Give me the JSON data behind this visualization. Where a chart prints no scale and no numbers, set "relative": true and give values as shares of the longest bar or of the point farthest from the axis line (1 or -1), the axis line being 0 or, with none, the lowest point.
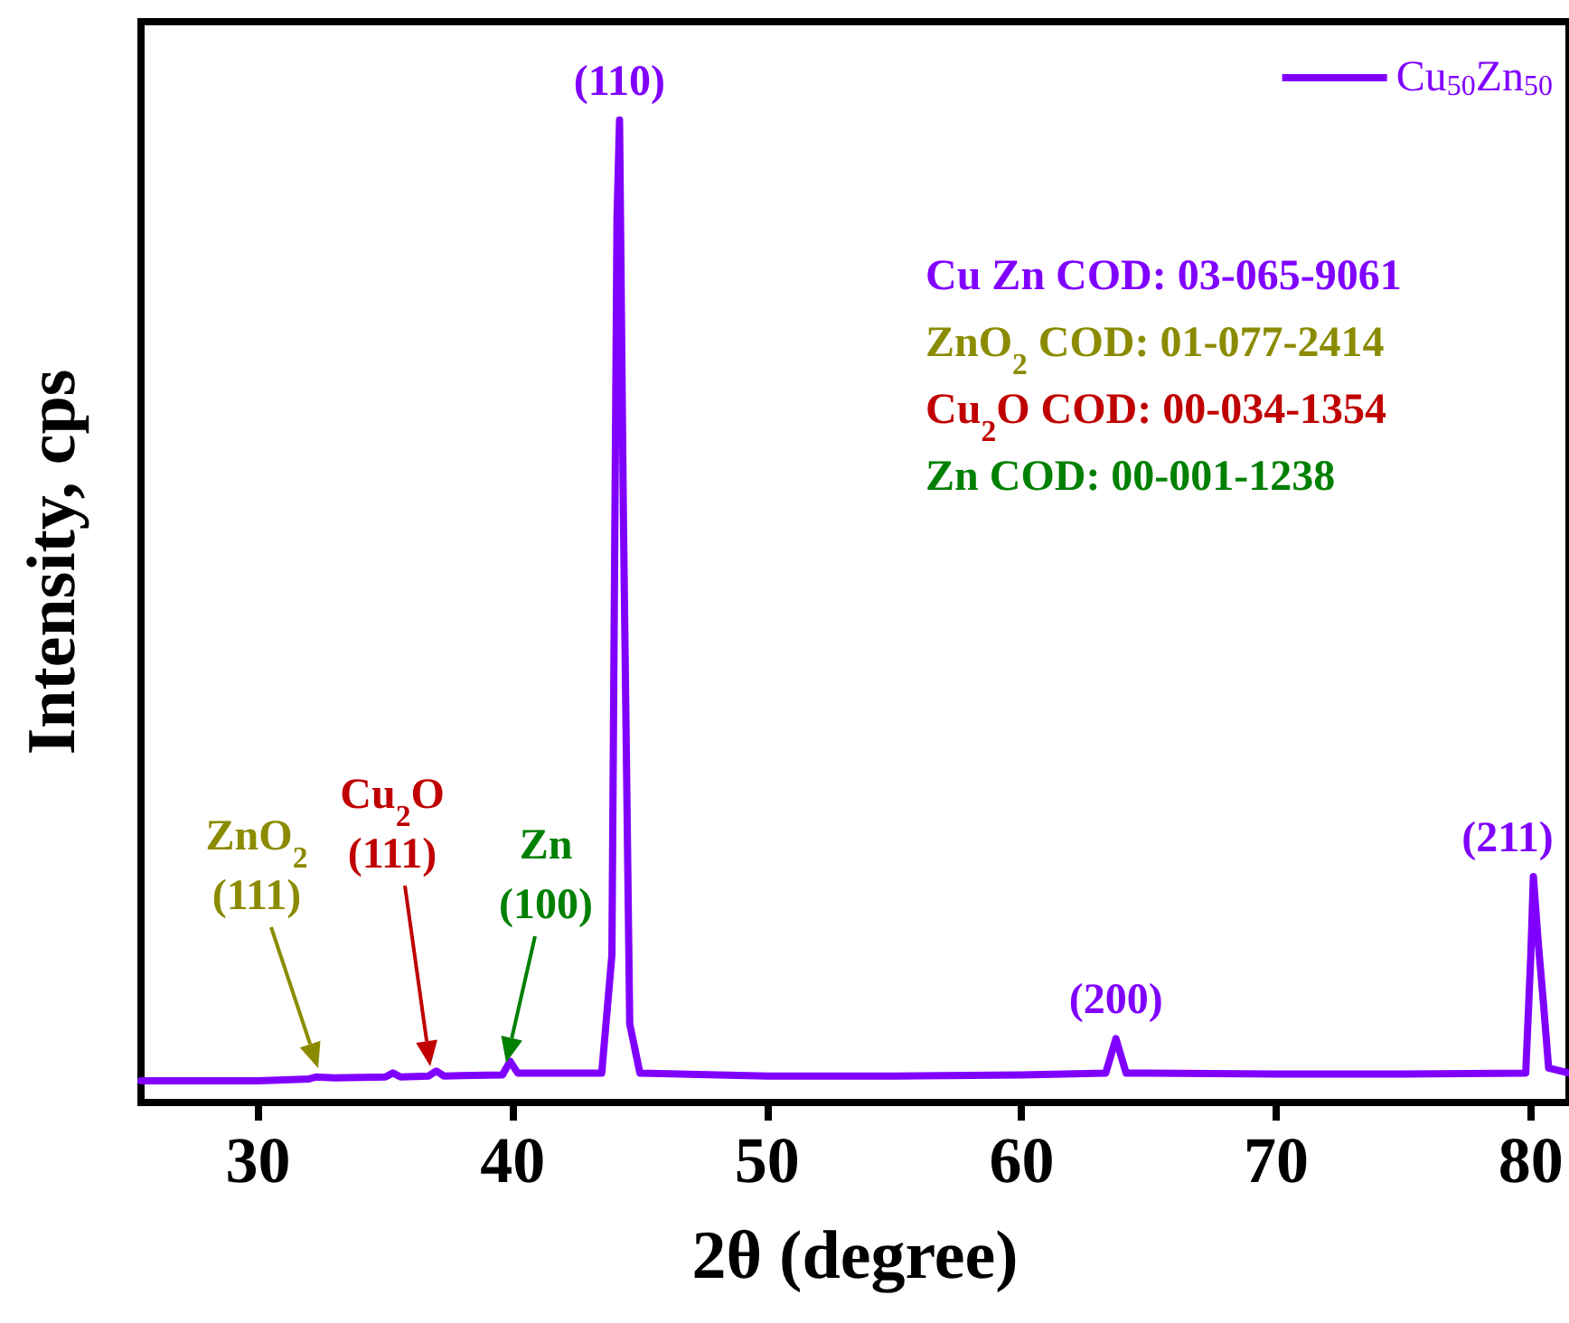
{
  "chart_data": {
    "type": "line",
    "relative": true,
    "xlabel": "2θ (degree)",
    "ylabel": "Intensity, cps",
    "xlim": [
      25.4,
      81.5
    ],
    "xticks": [
      30,
      40,
      50,
      60,
      70,
      80
    ],
    "grid": false,
    "legend": "top right",
    "marker": "none",
    "line_style": "solid",
    "x": [
      25.4,
      28,
      30,
      32,
      32.3,
      33,
      35,
      35.3,
      35.6,
      36.7,
      37.0,
      37.3,
      39.6,
      39.9,
      40.2,
      43.5,
      43.9,
      44.1,
      44.2,
      44.35,
      44.6,
      45,
      50,
      55,
      60,
      63.3,
      63.7,
      64.1,
      70,
      75,
      79.8,
      80.0,
      80.1,
      80.3,
      80.5,
      80.7,
      81.5
    ],
    "series": [
      {
        "name": "Cu$_{50}$Zn$_{50}$",
        "color": "#8000ff",
        "values": [
          0.022,
          0.022,
          0.022,
          0.024,
          0.026,
          0.025,
          0.026,
          0.03,
          0.026,
          0.027,
          0.032,
          0.027,
          0.028,
          0.042,
          0.03,
          0.03,
          0.15,
          0.9,
          1.0,
          0.6,
          0.08,
          0.03,
          0.027,
          0.027,
          0.028,
          0.03,
          0.065,
          0.03,
          0.029,
          0.029,
          0.03,
          0.15,
          0.23,
          0.16,
          0.1,
          0.035,
          0.03
        ]
      }
    ],
    "annotations": [
      {
        "text": "(110)",
        "x": 44.2,
        "y": 1.0
      },
      {
        "text": "(200)",
        "x": 63.7,
        "y": 0.065
      },
      {
        "text": "(211)",
        "x": 80.1,
        "y": 0.23
      },
      "ZnO$_{2}$\n(111)",
      "Cu$_{2}$O\n(111)",
      "Zn\n(100)",
      "Cu Zn COD: 03-065-9061",
      "ZnO$_{2}$ COD: 01-077-2414",
      "Cu$_{2}$O COD: 00-034-1354",
      "Zn COD: 00-001-1238"
    ]
  }
}
